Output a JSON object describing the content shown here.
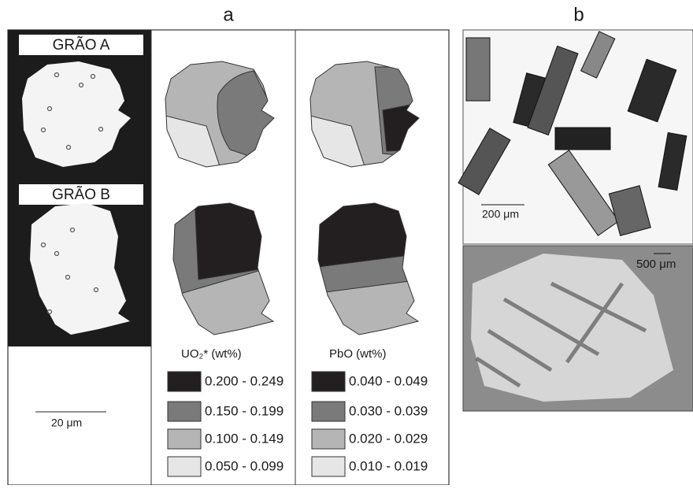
{
  "panel_labels": {
    "a": "a",
    "b": "b"
  },
  "grains": [
    {
      "label": "GRÃO A"
    },
    {
      "label": "GRÃO B"
    }
  ],
  "scale_bar": "20 μm",
  "legends": [
    {
      "title": "UO₂* (wt%)",
      "items": [
        "0.200 - 0.249",
        "0.150 - 0.199",
        "0.100 - 0.149",
        "0.050 - 0.099"
      ]
    },
    {
      "title": "PbO (wt%)",
      "items": [
        "0.040 - 0.049",
        "0.030 - 0.039",
        "0.020 - 0.029",
        "0.010 - 0.019"
      ]
    }
  ],
  "photos": [
    {
      "scale_bar": "200 μm"
    },
    {
      "scale_bar": "500 μm"
    }
  ]
}
